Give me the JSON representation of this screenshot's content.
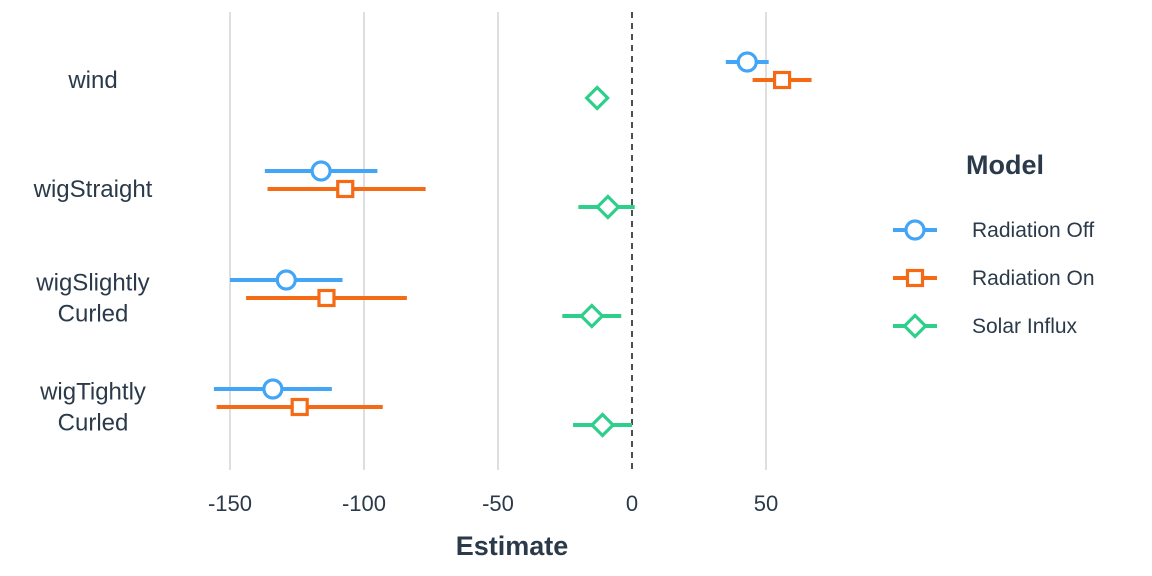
{
  "chart_data": {
    "type": "coefficient-plot",
    "xlabel": "Estimate",
    "xlim": [
      -165,
      75
    ],
    "x_ticks": [
      -150,
      -100,
      -50,
      0,
      50
    ],
    "x_tick_labels": [
      "-150",
      "-100",
      "-50",
      "0",
      "50"
    ],
    "reference_line": 0,
    "grid": "vertical major gridlines",
    "legend_position": "right",
    "legend_title": "Model",
    "categories": [
      {
        "label_lines": [
          "wind"
        ]
      },
      {
        "label_lines": [
          "wigStraight"
        ]
      },
      {
        "label_lines": [
          "wigSlightly",
          "Curled"
        ]
      },
      {
        "label_lines": [
          "wigTightly",
          "Curled"
        ]
      }
    ],
    "series": [
      {
        "name": "Radiation Off",
        "color": "#42a5f5",
        "marker": "circle",
        "points": [
          {
            "category": "wind",
            "estimate": 43,
            "low": 35,
            "high": 51
          },
          {
            "category": "wigStraight",
            "estimate": -116,
            "low": -137,
            "high": -95
          },
          {
            "category": "wigSlightly Curled",
            "estimate": -129,
            "low": -150,
            "high": -108
          },
          {
            "category": "wigTightly Curled",
            "estimate": -134,
            "low": -156,
            "high": -112
          }
        ]
      },
      {
        "name": "Radiation On",
        "color": "#f46a15",
        "marker": "square",
        "points": [
          {
            "category": "wind",
            "estimate": 56,
            "low": 45,
            "high": 67
          },
          {
            "category": "wigStraight",
            "estimate": -107,
            "low": -136,
            "high": -77
          },
          {
            "category": "wigSlightly Curled",
            "estimate": -114,
            "low": -144,
            "high": -84
          },
          {
            "category": "wigTightly Curled",
            "estimate": -124,
            "low": -155,
            "high": -93
          }
        ]
      },
      {
        "name": "Solar Influx",
        "color": "#2ecf8a",
        "marker": "diamond",
        "points": [
          {
            "category": "wind",
            "estimate": -13,
            "low": -13,
            "high": -13
          },
          {
            "category": "wigStraight",
            "estimate": -9,
            "low": -20,
            "high": 1
          },
          {
            "category": "wigSlightly Curled",
            "estimate": -15,
            "low": -26,
            "high": -4
          },
          {
            "category": "wigTightly Curled",
            "estimate": -11,
            "low": -22,
            "high": 0
          }
        ]
      }
    ]
  },
  "colors": {
    "grid": "#dedede",
    "reference_line": "#222222",
    "text": "#2b3a4a"
  }
}
